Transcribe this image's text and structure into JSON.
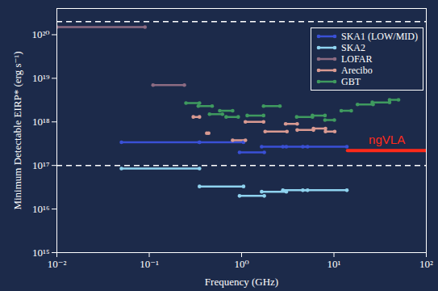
{
  "chart_data": {
    "type": "line",
    "x_label": "Frequency (GHz)",
    "y_label": "Minimum Detectable EIRP* (erg s⁻¹)",
    "log": true,
    "grid": false,
    "legend": "top-right",
    "marker": "circle",
    "xlim": [
      0.01,
      100
    ],
    "xticks": [
      {
        "value": 0.01,
        "label": "10⁻²"
      },
      {
        "value": 0.1,
        "label": "10⁻¹"
      },
      {
        "value": 1,
        "label": "10⁰"
      },
      {
        "value": 10,
        "label": "10¹"
      },
      {
        "value": 100,
        "label": "10²"
      }
    ],
    "ylim": [
      1000000000000000.0,
      4e+20
    ],
    "yticks": [
      {
        "value": 1000000000000000.0,
        "label": "10¹⁵"
      },
      {
        "value": 1e+16,
        "label": "10¹⁶"
      },
      {
        "value": 1e+17,
        "label": "10¹⁷"
      },
      {
        "value": 1e+18,
        "label": "10¹⁸"
      },
      {
        "value": 1e+19,
        "label": "10¹⁹"
      },
      {
        "value": 1e+20,
        "label": "10²⁰"
      }
    ],
    "series": [
      {
        "name": "SKA1 (LOW/MID)",
        "color": "#3a50d6",
        "values": [
          {
            "x0": 0.05,
            "x1": 0.35,
            "y": 3.4e+17
          },
          {
            "x0": 0.35,
            "x1": 1.05,
            "y": 3.4e+17
          },
          {
            "x0": 0.95,
            "x1": 1.76,
            "y": 2e+17
          },
          {
            "x0": 1.65,
            "x1": 3.05,
            "y": 2.7e+17
          },
          {
            "x0": 2.8,
            "x1": 5.18,
            "y": 2.7e+17
          },
          {
            "x0": 4.6,
            "x1": 13.8,
            "y": 2.7e+17
          }
        ]
      },
      {
        "name": "SKA2",
        "color": "#8fd3ef",
        "values": [
          {
            "x0": 0.05,
            "x1": 0.35,
            "y": 8.5e+16
          },
          {
            "x0": 0.35,
            "x1": 1.05,
            "y": 3.3e+16
          },
          {
            "x0": 0.95,
            "x1": 1.76,
            "y": 2e+16
          },
          {
            "x0": 1.65,
            "x1": 3.05,
            "y": 2.5e+16
          },
          {
            "x0": 2.8,
            "x1": 5.18,
            "y": 2.7e+16
          },
          {
            "x0": 4.6,
            "x1": 13.8,
            "y": 2.7e+16
          }
        ]
      },
      {
        "name": "LOFAR",
        "color": "#8c6b82",
        "values": [
          {
            "x0": 0.01,
            "x1": 0.09,
            "y": 1.5e+20
          },
          {
            "x0": 0.11,
            "x1": 0.24,
            "y": 7e+18
          }
        ]
      },
      {
        "name": "Arecibo",
        "color": "#d99a92",
        "values": [
          {
            "x0": 0.3,
            "x1": 0.35,
            "y": 1.3e+18
          },
          {
            "x0": 0.42,
            "x1": 0.44,
            "y": 5.5e+17
          },
          {
            "x0": 0.8,
            "x1": 1.1,
            "y": 3.8e+17
          },
          {
            "x0": 1.1,
            "x1": 1.73,
            "y": 1e+18
          },
          {
            "x0": 1.8,
            "x1": 3.1,
            "y": 6e+17
          },
          {
            "x0": 3.0,
            "x1": 4.0,
            "y": 9e+17
          },
          {
            "x0": 4.0,
            "x1": 6.0,
            "y": 6.5e+17
          },
          {
            "x0": 6.0,
            "x1": 8.1,
            "y": 7e+17
          },
          {
            "x0": 8.1,
            "x1": 10.2,
            "y": 6e+17
          }
        ]
      },
      {
        "name": "GBT",
        "color": "#3f9a5f",
        "values": [
          {
            "x0": 0.25,
            "x1": 0.35,
            "y": 2.7e+18
          },
          {
            "x0": 0.34,
            "x1": 0.48,
            "y": 2.3e+18
          },
          {
            "x0": 0.45,
            "x1": 0.62,
            "y": 1.5e+18
          },
          {
            "x0": 0.58,
            "x1": 0.8,
            "y": 1.8e+18
          },
          {
            "x0": 0.68,
            "x1": 0.92,
            "y": 1.3e+18
          },
          {
            "x0": 1.15,
            "x1": 1.73,
            "y": 1.4e+18
          },
          {
            "x0": 1.73,
            "x1": 2.6,
            "y": 2.3e+18
          },
          {
            "x0": 3.95,
            "x1": 5.85,
            "y": 1.3e+18
          },
          {
            "x0": 5.85,
            "x1": 8.0,
            "y": 1.4e+18
          },
          {
            "x0": 8.0,
            "x1": 10.1,
            "y": 1.1e+18
          },
          {
            "x0": 12.0,
            "x1": 15.4,
            "y": 1.8e+18
          },
          {
            "x0": 18.0,
            "x1": 26.5,
            "y": 2.5e+18
          },
          {
            "x0": 26.0,
            "x1": 40.0,
            "y": 2.8e+18
          },
          {
            "x0": 40.0,
            "x1": 50.0,
            "y": 3.2e+18
          }
        ]
      }
    ],
    "reference_lines": {
      "values": [
        2e+20,
        1e+17
      ],
      "line_style": "dashed",
      "color": "#ffffff"
    },
    "annotations": [
      {
        "text": "ngVLA",
        "color": "#ff2a1a",
        "x0": 14,
        "x1": 116,
        "y": 2.2e+17
      }
    ]
  }
}
